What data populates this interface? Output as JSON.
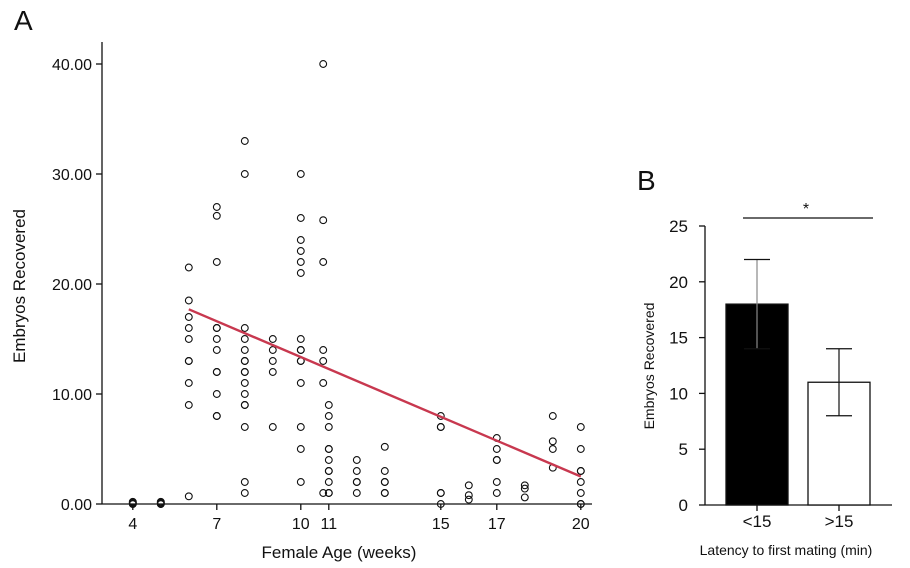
{
  "panels": {
    "a": "A",
    "b": "B"
  },
  "chart_data": [
    {
      "type": "scatter",
      "panel": "A",
      "xlabel": "Female Age (weeks)",
      "ylabel": "Embryos Recovered",
      "xticks": [
        "4",
        "7",
        "10",
        "11",
        "15",
        "17",
        "20"
      ],
      "xtick_positions": [
        4,
        7,
        10,
        11,
        15,
        17,
        20
      ],
      "yticks": [
        "0.00",
        "10.00",
        "20.00",
        "30.00",
        "40.00"
      ],
      "ytick_values": [
        0,
        10,
        20,
        30,
        40
      ],
      "xlim": [
        2.9,
        20.4
      ],
      "ylim": [
        0,
        42
      ],
      "trendline": {
        "x": [
          6,
          20
        ],
        "y": [
          17.7,
          2.5
        ],
        "color": "#c8384f"
      },
      "points": [
        [
          4,
          0
        ],
        [
          4,
          0.1
        ],
        [
          4,
          0.2
        ],
        [
          4,
          0
        ],
        [
          4,
          0.1
        ],
        [
          5,
          0
        ],
        [
          5,
          0.1
        ],
        [
          5,
          0.2
        ],
        [
          5,
          0
        ],
        [
          5,
          0.1
        ],
        [
          6,
          21.5
        ],
        [
          6,
          18.5
        ],
        [
          6,
          17
        ],
        [
          6,
          16
        ],
        [
          6,
          15
        ],
        [
          6,
          13
        ],
        [
          6,
          13
        ],
        [
          6,
          11
        ],
        [
          6,
          9
        ],
        [
          6,
          0.7
        ],
        [
          7,
          27
        ],
        [
          7,
          26.2
        ],
        [
          7,
          22
        ],
        [
          7,
          16
        ],
        [
          7,
          16
        ],
        [
          7,
          15
        ],
        [
          7,
          14
        ],
        [
          7,
          12
        ],
        [
          7,
          12
        ],
        [
          7,
          10
        ],
        [
          7,
          8
        ],
        [
          7,
          8
        ],
        [
          8,
          33
        ],
        [
          8,
          30
        ],
        [
          8,
          16
        ],
        [
          8,
          15
        ],
        [
          8,
          14
        ],
        [
          8,
          13
        ],
        [
          8,
          13
        ],
        [
          8,
          12
        ],
        [
          8,
          12
        ],
        [
          8,
          11
        ],
        [
          8,
          10
        ],
        [
          8,
          9
        ],
        [
          8,
          9
        ],
        [
          8,
          7
        ],
        [
          8,
          2
        ],
        [
          8,
          1
        ],
        [
          9,
          15
        ],
        [
          9,
          14
        ],
        [
          9,
          13
        ],
        [
          9,
          12
        ],
        [
          9,
          7
        ],
        [
          10,
          30
        ],
        [
          10,
          26
        ],
        [
          10,
          24
        ],
        [
          10,
          23
        ],
        [
          10,
          22
        ],
        [
          10,
          21
        ],
        [
          10,
          15
        ],
        [
          10,
          14
        ],
        [
          10,
          14
        ],
        [
          10,
          13
        ],
        [
          10,
          13
        ],
        [
          10,
          11
        ],
        [
          10,
          7
        ],
        [
          10,
          5
        ],
        [
          10,
          2
        ],
        [
          10.8,
          40
        ],
        [
          10.8,
          25.8
        ],
        [
          10.8,
          22
        ],
        [
          10.8,
          14
        ],
        [
          10.8,
          13
        ],
        [
          10.8,
          11
        ],
        [
          10.8,
          1
        ],
        [
          11,
          9
        ],
        [
          11,
          8
        ],
        [
          11,
          7
        ],
        [
          11,
          5
        ],
        [
          11,
          5
        ],
        [
          11,
          4
        ],
        [
          11,
          3
        ],
        [
          11,
          3
        ],
        [
          11,
          2
        ],
        [
          11,
          1
        ],
        [
          11,
          1
        ],
        [
          12,
          4
        ],
        [
          12,
          3
        ],
        [
          12,
          2
        ],
        [
          12,
          2
        ],
        [
          12,
          1
        ],
        [
          13,
          5.2
        ],
        [
          13,
          3
        ],
        [
          13,
          2
        ],
        [
          13,
          2
        ],
        [
          13,
          1
        ],
        [
          13,
          1
        ],
        [
          15,
          8
        ],
        [
          15,
          7
        ],
        [
          15,
          7
        ],
        [
          15,
          1
        ],
        [
          15,
          1
        ],
        [
          15,
          0
        ],
        [
          16,
          1.7
        ],
        [
          16,
          0.8
        ],
        [
          16,
          0.4
        ],
        [
          17,
          6
        ],
        [
          17,
          5
        ],
        [
          17,
          4
        ],
        [
          17,
          4
        ],
        [
          17,
          2
        ],
        [
          17,
          1
        ],
        [
          18,
          1.7
        ],
        [
          18,
          1.4
        ],
        [
          18,
          0.6
        ],
        [
          19,
          8
        ],
        [
          19,
          5.7
        ],
        [
          19,
          5
        ],
        [
          19,
          3.3
        ],
        [
          20,
          7
        ],
        [
          20,
          5
        ],
        [
          20,
          3
        ],
        [
          20,
          3
        ],
        [
          20,
          2
        ],
        [
          20,
          1
        ],
        [
          20,
          0
        ],
        [
          20,
          0
        ]
      ]
    },
    {
      "type": "bar",
      "panel": "B",
      "categories": [
        "<15",
        ">15"
      ],
      "values": [
        18,
        11
      ],
      "errors_low": [
        14,
        8
      ],
      "errors_high": [
        22,
        14
      ],
      "bar_colors": [
        "#000000",
        "#ffffff"
      ],
      "xlabel": "Latency to first mating (min)",
      "ylabel": "Embryos Recovered",
      "yticks": [
        "0",
        "5",
        "10",
        "15",
        "20",
        "25"
      ],
      "ylim": [
        0,
        25
      ],
      "significance": "*"
    }
  ]
}
